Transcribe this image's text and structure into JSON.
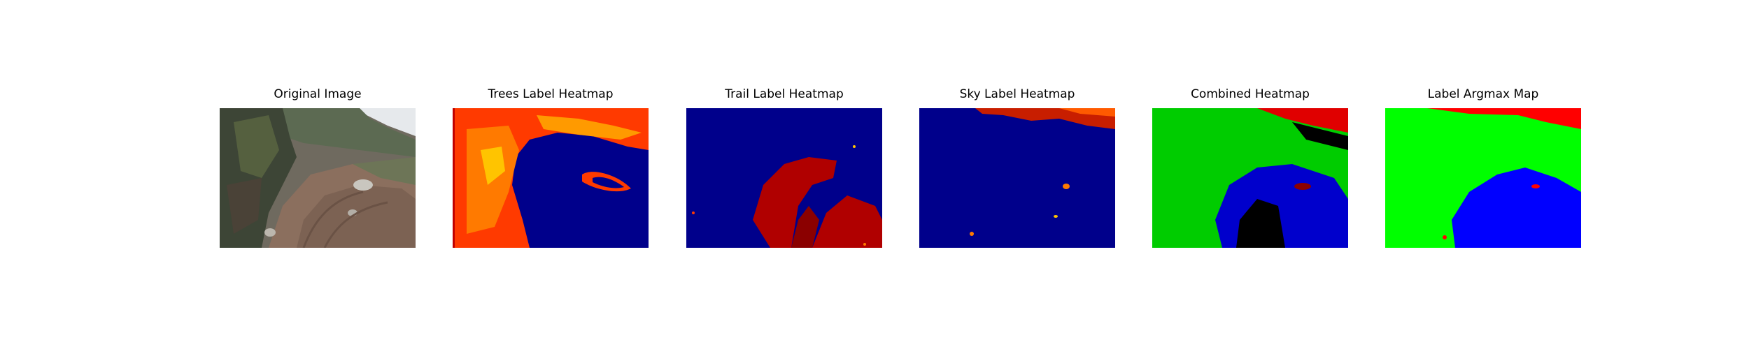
{
  "figure": {
    "panels": [
      {
        "title": "Original Image",
        "image": "trail-photo"
      },
      {
        "title": "Trees Label Heatmap",
        "image": "trees-heatmap"
      },
      {
        "title": "Trail Label Heatmap",
        "image": "trail-heatmap"
      },
      {
        "title": "Sky Label Heatmap",
        "image": "sky-heatmap"
      },
      {
        "title": "Combined Heatmap",
        "image": "combined-heatmap"
      },
      {
        "title": "Label Argmax Map",
        "image": "argmax-map"
      }
    ]
  },
  "colors": {
    "background": "#00008b",
    "trees_heat": "#ff3a00",
    "trail_heat": "#b00000",
    "sky_heat": "#c81e00",
    "class_trees": "#00ff00",
    "class_trail": "#0000ff",
    "class_sky": "#ff0000"
  }
}
